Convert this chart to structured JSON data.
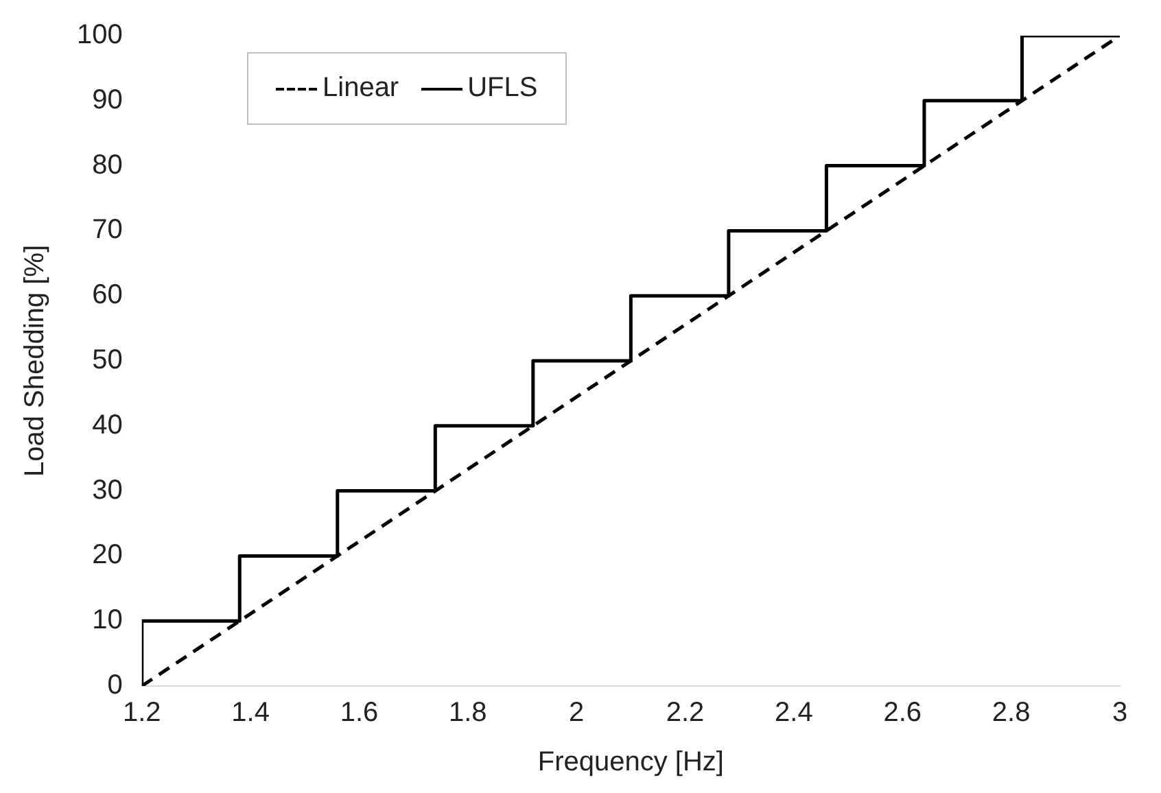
{
  "chart_data": {
    "type": "line",
    "xlabel": "Frequency [Hz]",
    "ylabel": "Load Shedding [%]",
    "xlim": [
      1.2,
      3
    ],
    "xticks": [
      1.2,
      1.4,
      1.6,
      1.8,
      2,
      2.2,
      2.4,
      2.6,
      2.8,
      3
    ],
    "ylim": [
      0,
      100
    ],
    "yticks": [
      0,
      10,
      20,
      30,
      40,
      50,
      60,
      70,
      80,
      90,
      100
    ],
    "grid": false,
    "legend": "top left",
    "marker": "none",
    "series": [
      {
        "name": "Linear",
        "color": "#000000",
        "line_style": "dashed",
        "x": [
          1.2,
          3
        ],
        "values": [
          0,
          100
        ]
      },
      {
        "name": "UFLS",
        "type": "step",
        "color": "#000000",
        "line_style": "solid",
        "x": [
          1.2,
          1.38,
          1.56,
          1.74,
          1.92,
          2.1,
          2.28,
          2.46,
          2.64,
          2.82,
          3
        ],
        "values": [
          0,
          10,
          20,
          30,
          40,
          50,
          60,
          70,
          80,
          90,
          100
        ]
      }
    ]
  }
}
